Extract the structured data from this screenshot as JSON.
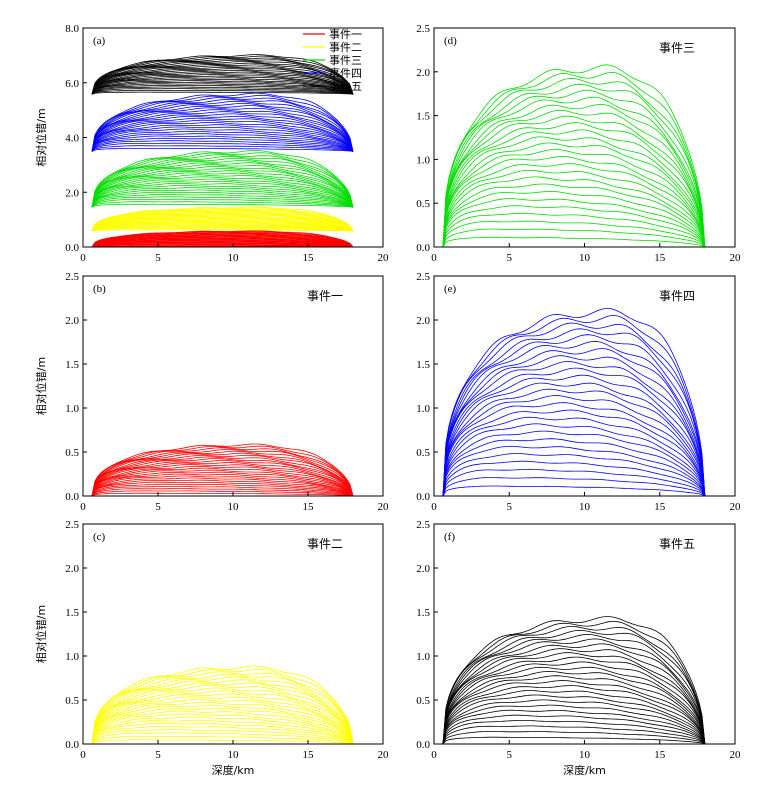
{
  "chart_data": [
    {
      "panel": "(a)",
      "type": "line",
      "xlabel": "",
      "ylabel": "相对位错/m",
      "xlim": [
        0,
        20
      ],
      "ylim": [
        0,
        8
      ],
      "x_ticks": [
        "0",
        "5",
        "10",
        "15",
        "20"
      ],
      "y_ticks": [
        "0.0",
        "2.0",
        "4.0",
        "6.0",
        "8.0"
      ],
      "event_label": "",
      "legend": {
        "placement": "top-right",
        "entries": [
          {
            "name": "事件一",
            "color": "#ff0000"
          },
          {
            "name": "事件二",
            "color": "#ffff00"
          },
          {
            "name": "事件三",
            "color": "#00dd00"
          },
          {
            "name": "事件四",
            "color": "#0000ff"
          },
          {
            "name": "事件五",
            "color": "#000000"
          }
        ]
      },
      "x_start": 0.6,
      "x_end": 18.0,
      "series": [
        {
          "name": "事件一",
          "color": "#ff0000",
          "peak": 0.58,
          "peak_x": 11,
          "base": 0.0
        },
        {
          "name": "事件二",
          "color": "#ffff00",
          "peak": 0.87,
          "peak_x": 11,
          "base": 0.58
        },
        {
          "name": "事件三",
          "color": "#00dd00",
          "peak": 2.04,
          "peak_x": 11,
          "base": 1.45
        },
        {
          "name": "事件四",
          "color": "#0000ff",
          "peak": 2.09,
          "peak_x": 11.5,
          "base": 3.49
        },
        {
          "name": "事件五",
          "color": "#000000",
          "peak": 1.42,
          "peak_x": 11.5,
          "base": 5.58
        }
      ]
    },
    {
      "panel": "(b)",
      "type": "line",
      "xlabel": "",
      "ylabel": "相对位错/m",
      "xlim": [
        0,
        20
      ],
      "ylim": [
        0,
        2.5
      ],
      "x_ticks": [
        "0",
        "5",
        "10",
        "15",
        "20"
      ],
      "y_ticks": [
        "0.0",
        "0.5",
        "1.0",
        "1.5",
        "2.0",
        "2.5"
      ],
      "event_label": "事件一",
      "x_start": 0.6,
      "x_end": 18.0,
      "series": [
        {
          "name": "事件一",
          "color": "#ff0000",
          "peak": 0.58,
          "peak_x": 11,
          "base": 0.0
        }
      ]
    },
    {
      "panel": "(c)",
      "type": "line",
      "xlabel": "深度/km",
      "ylabel": "相对位错/m",
      "xlim": [
        0,
        20
      ],
      "ylim": [
        0,
        2.5
      ],
      "x_ticks": [
        "0",
        "5",
        "10",
        "15",
        "20"
      ],
      "y_ticks": [
        "0.0",
        "0.5",
        "1.0",
        "1.5",
        "2.0",
        "2.5"
      ],
      "event_label": "事件二",
      "x_start": 0.6,
      "x_end": 18.0,
      "series": [
        {
          "name": "事件二",
          "color": "#ffff00",
          "peak": 0.87,
          "peak_x": 11,
          "base": 0.0
        }
      ]
    },
    {
      "panel": "(d)",
      "type": "line",
      "xlabel": "",
      "ylabel": "",
      "xlim": [
        0,
        20
      ],
      "ylim": [
        0,
        2.5
      ],
      "x_ticks": [
        "0",
        "5",
        "10",
        "15",
        "20"
      ],
      "y_ticks": [
        "0.0",
        "0.5",
        "1.0",
        "1.5",
        "2.0",
        "2.5"
      ],
      "event_label": "事件三",
      "x_start": 0.6,
      "x_end": 18.0,
      "series": [
        {
          "name": "事件三",
          "color": "#00dd00",
          "peak": 2.04,
          "peak_x": 11,
          "base": 0.0
        }
      ]
    },
    {
      "panel": "(e)",
      "type": "line",
      "xlabel": "",
      "ylabel": "",
      "xlim": [
        0,
        20
      ],
      "ylim": [
        0,
        2.5
      ],
      "x_ticks": [
        "0",
        "5",
        "10",
        "15",
        "20"
      ],
      "y_ticks": [
        "0.0",
        "0.5",
        "1.0",
        "1.5",
        "2.0",
        "2.5"
      ],
      "event_label": "事件四",
      "x_start": 0.6,
      "x_end": 18.0,
      "series": [
        {
          "name": "事件四",
          "color": "#0000ff",
          "peak": 2.09,
          "peak_x": 11.5,
          "base": 0.0
        }
      ]
    },
    {
      "panel": "(f)",
      "type": "line",
      "xlabel": "深度/km",
      "ylabel": "",
      "xlim": [
        0,
        20
      ],
      "ylim": [
        0,
        2.5
      ],
      "x_ticks": [
        "0",
        "5",
        "10",
        "15",
        "20"
      ],
      "y_ticks": [
        "0.0",
        "0.5",
        "1.0",
        "1.5",
        "2.0",
        "2.5"
      ],
      "event_label": "事件五",
      "x_start": 0.6,
      "x_end": 18.0,
      "series": [
        {
          "name": "事件五",
          "color": "#000000",
          "peak": 1.42,
          "peak_x": 11.5,
          "base": 0.0
        }
      ]
    }
  ]
}
